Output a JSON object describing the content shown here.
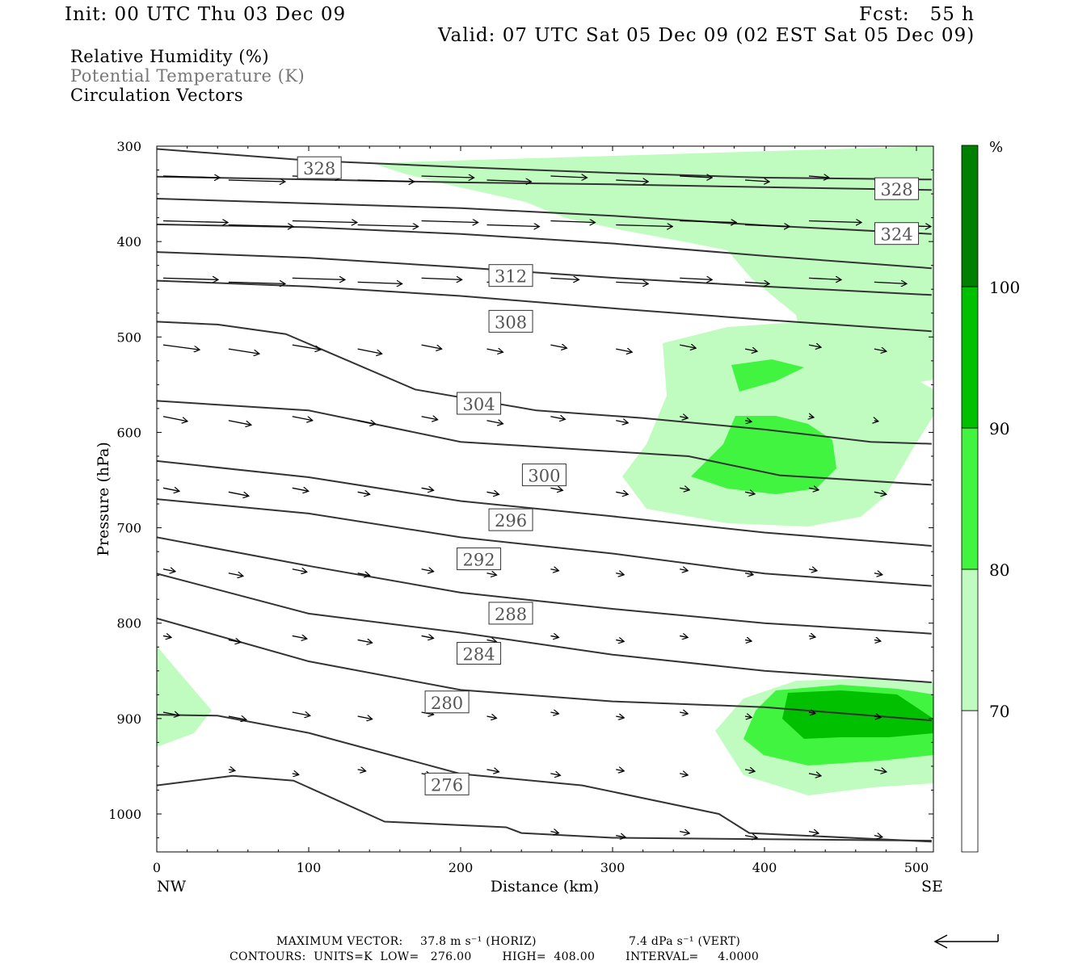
{
  "header": {
    "init": "Init: 00 UTC Thu 03 Dec 09",
    "fcst": "Fcst:   55 h",
    "valid": "Valid: 07 UTC Sat 05 Dec 09 (02 EST Sat 05 Dec 09)"
  },
  "fields": [
    {
      "label": "Relative Humidity (%)",
      "color": "#000000"
    },
    {
      "label": "Potential Temperature (K)",
      "color": "#777777"
    },
    {
      "label": "Circulation Vectors",
      "color": "#000000"
    }
  ],
  "footer": {
    "max_vector_label": "MAXIMUM VECTOR:",
    "max_vector_horiz": "37.8 m s⁻¹ (HORIZ)",
    "max_vector_vert": "7.4 dPa s⁻¹ (VERT)",
    "contours": "CONTOURS:  UNITS=K  LOW=   276.00        HIGH=  408.00        INTERVAL=     4.0000"
  },
  "chart_data": {
    "type": "contour-section",
    "xlabel": "Distance (km)",
    "ylabel": "Pressure (hPa)",
    "xlim": [
      0,
      510
    ],
    "ylim": [
      300,
      1040
    ],
    "y_inverted": true,
    "x_ticks": [
      0,
      100,
      200,
      300,
      400,
      500
    ],
    "y_ticks": [
      300,
      400,
      500,
      600,
      700,
      800,
      900,
      1000
    ],
    "x_end_labels": {
      "left": "NW",
      "right": "SE"
    },
    "colorbar": {
      "unit": "%",
      "levels": [
        70,
        80,
        90,
        100
      ],
      "colors": [
        "#ffffff",
        "#c0fcc0",
        "#40f440",
        "#00c000",
        "#008000"
      ]
    },
    "contour_labels": [
      {
        "value": "328",
        "x": 107,
        "p": 323
      },
      {
        "value": "328",
        "x": 487,
        "p": 345
      },
      {
        "value": "324",
        "x": 487,
        "p": 392
      },
      {
        "value": "312",
        "x": 233,
        "p": 436
      },
      {
        "value": "308",
        "x": 233,
        "p": 484
      },
      {
        "value": "304",
        "x": 212,
        "p": 570
      },
      {
        "value": "300",
        "x": 255,
        "p": 645
      },
      {
        "value": "296",
        "x": 233,
        "p": 692
      },
      {
        "value": "292",
        "x": 212,
        "p": 733
      },
      {
        "value": "288",
        "x": 233,
        "p": 790
      },
      {
        "value": "284",
        "x": 212,
        "p": 832
      },
      {
        "value": "280",
        "x": 191,
        "p": 883
      },
      {
        "value": "276",
        "x": 191,
        "p": 969
      }
    ],
    "isentropes": [
      {
        "theta": 328,
        "points": [
          [
            0,
            303
          ],
          [
            100,
            315
          ],
          [
            200,
            322
          ],
          [
            300,
            328
          ],
          [
            400,
            333
          ],
          [
            510,
            335
          ]
        ]
      },
      {
        "theta": 328,
        "points": [
          [
            0,
            332
          ],
          [
            100,
            335
          ],
          [
            200,
            338
          ],
          [
            300,
            340
          ],
          [
            400,
            343
          ],
          [
            510,
            346
          ]
        ]
      },
      {
        "theta": 324,
        "points": [
          [
            0,
            355
          ],
          [
            100,
            360
          ],
          [
            200,
            365
          ],
          [
            300,
            373
          ],
          [
            400,
            383
          ],
          [
            510,
            392
          ]
        ]
      },
      {
        "theta": 320,
        "points": [
          [
            0,
            382
          ],
          [
            100,
            385
          ],
          [
            200,
            392
          ],
          [
            300,
            402
          ],
          [
            400,
            415
          ],
          [
            510,
            428
          ]
        ]
      },
      {
        "theta": 316,
        "points": [
          [
            0,
            411
          ],
          [
            100,
            417
          ],
          [
            200,
            427
          ],
          [
            300,
            438
          ],
          [
            400,
            447
          ],
          [
            510,
            456
          ]
        ]
      },
      {
        "theta": 312,
        "points": [
          [
            0,
            441
          ],
          [
            100,
            447
          ],
          [
            200,
            457
          ],
          [
            300,
            470
          ],
          [
            400,
            482
          ],
          [
            510,
            494
          ]
        ]
      },
      {
        "theta": 308,
        "points": [
          [
            0,
            484
          ],
          [
            40,
            487
          ],
          [
            85,
            497
          ],
          [
            170,
            555
          ],
          [
            250,
            577
          ],
          [
            320,
            585
          ],
          [
            400,
            597
          ],
          [
            470,
            610
          ],
          [
            510,
            612
          ]
        ]
      },
      {
        "theta": 304,
        "points": [
          [
            0,
            567
          ],
          [
            100,
            577
          ],
          [
            200,
            610
          ],
          [
            280,
            618
          ],
          [
            350,
            625
          ],
          [
            410,
            645
          ],
          [
            510,
            655
          ]
        ]
      },
      {
        "theta": 300,
        "points": [
          [
            0,
            630
          ],
          [
            100,
            647
          ],
          [
            200,
            672
          ],
          [
            300,
            688
          ],
          [
            400,
            705
          ],
          [
            510,
            719
          ]
        ]
      },
      {
        "theta": 296,
        "points": [
          [
            0,
            670
          ],
          [
            100,
            685
          ],
          [
            200,
            710
          ],
          [
            300,
            727
          ],
          [
            400,
            748
          ],
          [
            510,
            761
          ]
        ]
      },
      {
        "theta": 292,
        "points": [
          [
            0,
            710
          ],
          [
            100,
            740
          ],
          [
            200,
            768
          ],
          [
            300,
            785
          ],
          [
            400,
            800
          ],
          [
            510,
            811
          ]
        ]
      },
      {
        "theta": 288,
        "points": [
          [
            0,
            748
          ],
          [
            100,
            790
          ],
          [
            200,
            810
          ],
          [
            300,
            833
          ],
          [
            400,
            850
          ],
          [
            510,
            862
          ]
        ]
      },
      {
        "theta": 284,
        "points": [
          [
            0,
            795
          ],
          [
            100,
            840
          ],
          [
            200,
            870
          ],
          [
            300,
            882
          ],
          [
            400,
            888
          ],
          [
            510,
            902
          ]
        ]
      },
      {
        "theta": 280,
        "points": [
          [
            0,
            896
          ],
          [
            40,
            897
          ],
          [
            100,
            915
          ],
          [
            200,
            958
          ],
          [
            280,
            970
          ],
          [
            370,
            1000
          ],
          [
            390,
            1020
          ],
          [
            510,
            1029
          ]
        ]
      },
      {
        "theta": 276,
        "points": [
          [
            0,
            970
          ],
          [
            50,
            960
          ],
          [
            90,
            965
          ],
          [
            150,
            1008
          ],
          [
            230,
            1014
          ],
          [
            240,
            1020
          ],
          [
            300,
            1025
          ],
          [
            510,
            1028
          ]
        ]
      }
    ]
  }
}
